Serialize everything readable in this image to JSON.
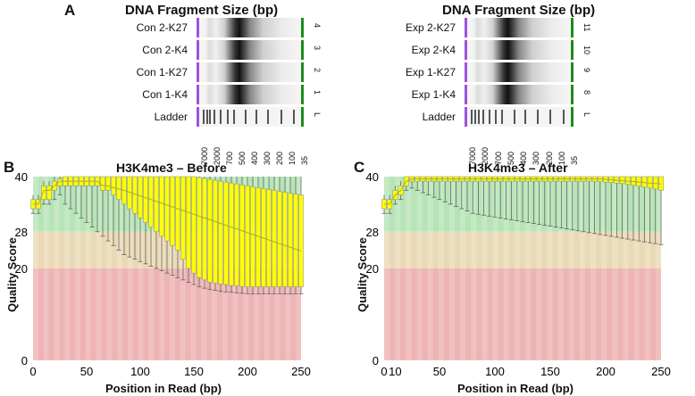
{
  "panelA": {
    "letter": "A",
    "left_gel": {
      "title": "DNA Fragment Size (bp)",
      "lanes": [
        {
          "label": "Con 2-K27",
          "num": "4"
        },
        {
          "label": "Con 2-K4",
          "num": "3"
        },
        {
          "label": "Con 1-K27",
          "num": "2"
        },
        {
          "label": "Con 1-K4",
          "num": "1"
        },
        {
          "label": "Ladder",
          "num": "L"
        }
      ],
      "ladder_ticks": [
        "7000",
        "2000",
        "700",
        "500",
        "400",
        "300",
        "200",
        "100",
        "35"
      ]
    },
    "right_gel": {
      "title": "DNA Fragment Size (bp)",
      "lanes": [
        {
          "label": "Exp 2-K27",
          "num": "11"
        },
        {
          "label": "Exp 2-K4",
          "num": "10"
        },
        {
          "label": "Exp 1-K27",
          "num": "9"
        },
        {
          "label": "Exp 1-K4",
          "num": "8"
        },
        {
          "label": "Ladder",
          "num": "L"
        }
      ],
      "ladder_ticks": [
        "7000",
        "2000",
        "700",
        "500",
        "400",
        "300",
        "200",
        "100",
        "35"
      ]
    }
  },
  "chart_data": [
    {
      "panel": "B",
      "type": "box",
      "title": "H3K4me3 – Before",
      "xlabel": "Position in Read (bp)",
      "ylabel": "Quality Score",
      "xticks": [
        "0",
        "50",
        "100",
        "150",
        "200",
        "250"
      ],
      "yticks": [
        "0",
        "20",
        "28",
        "40"
      ],
      "xlim": [
        0,
        250
      ],
      "ylim": [
        0,
        40
      ],
      "zones": [
        {
          "name": "poor",
          "from": 0,
          "to": 20,
          "color": "#eeb4b4"
        },
        {
          "name": "reasonable",
          "from": 20,
          "to": 28,
          "color": "#ead9b6"
        },
        {
          "name": "good",
          "from": 28,
          "to": 40,
          "color": "#b7e4b7"
        },
        {
          "name": "box",
          "color": "#ffff00"
        },
        {
          "name": "median-line",
          "color": "#aaaa33"
        }
      ],
      "positions": [
        0,
        5,
        10,
        15,
        20,
        25,
        30,
        35,
        40,
        45,
        50,
        55,
        60,
        65,
        70,
        75,
        80,
        85,
        90,
        95,
        100,
        105,
        110,
        115,
        120,
        125,
        130,
        135,
        140,
        145,
        150,
        155,
        160,
        165,
        170,
        175,
        180,
        185,
        190,
        195,
        200,
        205,
        210,
        215,
        220,
        225,
        230,
        235,
        240,
        245,
        250
      ],
      "q1": [
        33,
        33,
        35,
        35,
        37,
        38,
        38,
        38,
        38,
        38,
        38,
        38,
        38,
        37,
        37,
        36,
        35,
        34,
        33,
        32,
        31,
        30,
        29,
        28,
        27,
        26,
        25,
        24,
        22,
        20,
        19,
        18,
        17.5,
        17,
        16.8,
        16.6,
        16.5,
        16.3,
        16.2,
        16.1,
        16,
        16,
        16,
        16,
        16,
        16,
        16,
        16,
        16,
        16,
        16
      ],
      "median": [
        34,
        34,
        37,
        37,
        38,
        39,
        39,
        39,
        39,
        39,
        39,
        39,
        39,
        38,
        38,
        37.6,
        37.3,
        37,
        36.6,
        36.2,
        35.8,
        35.4,
        35,
        34.6,
        34.2,
        33.8,
        33.4,
        33,
        32.6,
        32.2,
        31.8,
        31.4,
        31,
        30.6,
        30.2,
        29.8,
        29.4,
        29,
        28.6,
        28.2,
        27.8,
        27.4,
        27,
        26.6,
        26.2,
        25.8,
        25.4,
        25,
        24.6,
        24.2,
        23.8
      ],
      "q3": [
        35,
        35,
        38,
        38,
        39,
        39.5,
        40,
        40,
        40,
        40,
        40,
        40,
        40,
        40,
        40,
        40,
        40,
        40,
        40,
        40,
        40,
        40,
        40,
        40,
        40,
        40,
        40,
        40,
        40,
        40,
        40,
        39.8,
        39.6,
        39.4,
        39.2,
        39,
        38.8,
        38.6,
        38.4,
        38.2,
        38,
        37.8,
        37.6,
        37.4,
        37.2,
        37,
        36.8,
        36.6,
        36.4,
        36.2,
        36
      ],
      "lower_whisker": [
        32,
        32,
        34,
        34,
        35,
        36,
        34,
        33,
        32,
        31,
        30,
        29,
        28,
        27,
        26,
        25,
        24,
        23,
        22.5,
        22,
        21.5,
        21,
        20.5,
        20,
        19.5,
        19,
        18.5,
        18,
        17.5,
        17,
        16.5,
        16,
        15.7,
        15.4,
        15.2,
        15,
        14.9,
        14.8,
        14.7,
        14.6,
        14.5,
        14.5,
        14.5,
        14.5,
        14.5,
        14.5,
        14.5,
        14.5,
        14.5,
        14.5,
        14.5
      ],
      "upper_whisker": [
        36,
        36,
        39,
        39,
        40,
        40,
        40,
        40,
        40,
        40,
        40,
        40,
        40,
        40,
        40,
        40,
        40,
        40,
        40,
        40,
        40,
        40,
        40,
        40,
        40,
        40,
        40,
        40,
        40,
        40,
        40,
        40,
        40,
        40,
        40,
        40,
        40,
        40,
        40,
        40,
        40,
        40,
        40,
        40,
        40,
        40,
        40,
        40,
        40,
        40,
        40
      ]
    },
    {
      "panel": "C",
      "type": "box",
      "title": "H3K4me3 – After",
      "xlabel": "Position in Read (bp)",
      "ylabel": "Quality Score",
      "xticks": [
        "0",
        "10",
        "50",
        "100",
        "150",
        "200",
        "250"
      ],
      "yticks": [
        "0",
        "20",
        "28",
        "40"
      ],
      "xlim": [
        0,
        250
      ],
      "ylim": [
        0,
        40
      ],
      "zones": [
        {
          "name": "poor",
          "from": 0,
          "to": 20,
          "color": "#eeb4b4"
        },
        {
          "name": "reasonable",
          "from": 20,
          "to": 28,
          "color": "#ead9b6"
        },
        {
          "name": "good",
          "from": 28,
          "to": 40,
          "color": "#b7e4b7"
        },
        {
          "name": "box",
          "color": "#ffff00"
        },
        {
          "name": "median-line",
          "color": "#aaaa33"
        }
      ],
      "positions": [
        0,
        5,
        10,
        15,
        20,
        25,
        30,
        35,
        40,
        45,
        50,
        55,
        60,
        65,
        70,
        75,
        80,
        85,
        90,
        95,
        100,
        105,
        110,
        115,
        120,
        125,
        130,
        135,
        140,
        145,
        150,
        155,
        160,
        165,
        170,
        175,
        180,
        185,
        190,
        195,
        200,
        205,
        210,
        215,
        220,
        225,
        230,
        235,
        240,
        245,
        250
      ],
      "q1": [
        33,
        33,
        35,
        36,
        38,
        39,
        39,
        39,
        39,
        39,
        39,
        39,
        39,
        39,
        39,
        39,
        39,
        39,
        39,
        39,
        39,
        39,
        39,
        39,
        39,
        39,
        39,
        39,
        39,
        39,
        39,
        39,
        39,
        39,
        39,
        39,
        39,
        39,
        39,
        38.9,
        38.8,
        38.7,
        38.6,
        38.5,
        38.3,
        38.1,
        37.9,
        37.7,
        37.5,
        37.3,
        37
      ],
      "median": [
        34,
        34,
        36,
        37,
        39,
        39.5,
        39.5,
        39.5,
        39.5,
        39.5,
        39.5,
        39.5,
        39.5,
        39.5,
        39.5,
        39.5,
        39.5,
        39.5,
        39.5,
        39.5,
        39.5,
        39.5,
        39.5,
        39.5,
        39.5,
        39.5,
        39.5,
        39.5,
        39.5,
        39.5,
        39.5,
        39.5,
        39.5,
        39.5,
        39.5,
        39.5,
        39.5,
        39.5,
        39.5,
        39.5,
        39.4,
        39.3,
        39.2,
        39.1,
        39,
        38.9,
        38.8,
        38.7,
        38.6,
        38.5,
        38.4
      ],
      "q3": [
        35,
        35,
        37,
        38,
        40,
        40,
        40,
        40,
        40,
        40,
        40,
        40,
        40,
        40,
        40,
        40,
        40,
        40,
        40,
        40,
        40,
        40,
        40,
        40,
        40,
        40,
        40,
        40,
        40,
        40,
        40,
        40,
        40,
        40,
        40,
        40,
        40,
        40,
        40,
        40,
        40,
        40,
        40,
        40,
        40,
        40,
        40,
        40,
        40,
        40,
        40
      ],
      "lower_whisker": [
        32,
        32,
        34,
        35,
        37,
        37.5,
        37,
        36.5,
        36,
        35.5,
        35,
        34.5,
        34,
        33.5,
        33,
        32.5,
        32,
        31.8,
        31.6,
        31.4,
        31.2,
        31,
        30.8,
        30.6,
        30.4,
        30.2,
        30,
        29.8,
        29.6,
        29.4,
        29.2,
        29,
        28.8,
        28.6,
        28.4,
        28.2,
        28,
        27.8,
        27.6,
        27.4,
        27.2,
        27,
        26.8,
        26.6,
        26.4,
        26.2,
        26,
        25.8,
        25.6,
        25.4,
        25.2
      ],
      "upper_whisker": [
        36,
        36,
        38,
        39,
        40,
        40,
        40,
        40,
        40,
        40,
        40,
        40,
        40,
        40,
        40,
        40,
        40,
        40,
        40,
        40,
        40,
        40,
        40,
        40,
        40,
        40,
        40,
        40,
        40,
        40,
        40,
        40,
        40,
        40,
        40,
        40,
        40,
        40,
        40,
        40,
        40,
        40,
        40,
        40,
        40,
        40,
        40,
        40,
        40,
        40,
        40
      ]
    }
  ]
}
